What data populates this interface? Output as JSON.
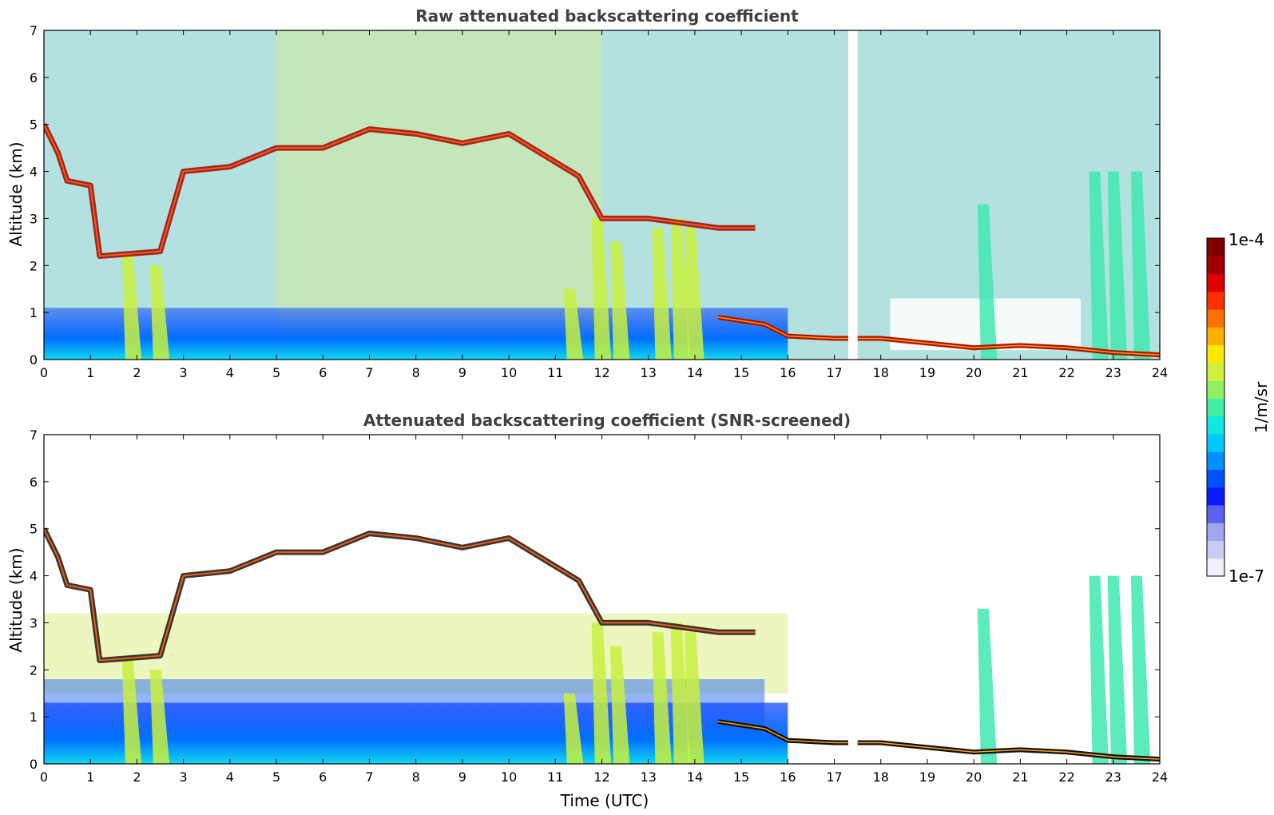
{
  "chart_data": [
    {
      "type": "heatmap",
      "title": "Raw attenuated backscattering coefficient",
      "xlabel": "",
      "ylabel": "Altitude (km)",
      "xlim": [
        0,
        24
      ],
      "ylim": [
        0,
        7
      ],
      "xticks": [
        "0",
        "1",
        "2",
        "3",
        "4",
        "5",
        "6",
        "7",
        "8",
        "9",
        "10",
        "11",
        "12",
        "13",
        "14",
        "15",
        "16",
        "17",
        "18",
        "19",
        "20",
        "21",
        "22",
        "23",
        "24"
      ],
      "yticks": [
        "0",
        "1",
        "2",
        "3",
        "4",
        "5",
        "6",
        "7"
      ],
      "features": {
        "cloud_layer": [
          [
            0,
            5.0
          ],
          [
            0.3,
            4.4
          ],
          [
            0.5,
            3.8
          ],
          [
            1.0,
            3.7
          ],
          [
            1.2,
            2.2
          ],
          [
            2.5,
            2.3
          ],
          [
            3.0,
            4.0
          ],
          [
            4.0,
            4.1
          ],
          [
            5.0,
            4.5
          ],
          [
            6.0,
            4.5
          ],
          [
            7.0,
            4.9
          ],
          [
            8.0,
            4.8
          ],
          [
            9.0,
            4.6
          ],
          [
            10.0,
            4.8
          ],
          [
            10.5,
            4.5
          ],
          [
            11.5,
            3.9
          ],
          [
            12.0,
            3.0
          ],
          [
            13.0,
            3.0
          ],
          [
            14.5,
            2.8
          ],
          [
            15.3,
            2.8
          ]
        ],
        "boundary_layer_top": [
          [
            14.5,
            0.9
          ],
          [
            15.5,
            0.75
          ],
          [
            16.0,
            0.5
          ],
          [
            17.0,
            0.45
          ],
          [
            18.0,
            0.45
          ],
          [
            19.0,
            0.35
          ],
          [
            20.0,
            0.25
          ],
          [
            21.0,
            0.3
          ],
          [
            22.0,
            0.25
          ],
          [
            23.0,
            0.15
          ],
          [
            24.0,
            0.1
          ]
        ],
        "precipitation_streaks": [
          [
            1.8,
            2.2
          ],
          [
            2.4,
            2.0
          ],
          [
            11.3,
            1.5
          ],
          [
            11.9,
            3.0
          ],
          [
            12.3,
            2.5
          ],
          [
            13.2,
            2.8
          ],
          [
            13.6,
            3.0
          ],
          [
            13.9,
            2.8
          ],
          [
            20.2,
            3.3
          ],
          [
            22.6,
            4.0
          ],
          [
            23.0,
            4.0
          ],
          [
            23.5,
            4.0
          ]
        ]
      }
    },
    {
      "type": "heatmap",
      "title": "Attenuated backscattering coefficient (SNR-screened)",
      "xlabel": "Time (UTC)",
      "ylabel": "Altitude (km)",
      "xlim": [
        0,
        24
      ],
      "ylim": [
        0,
        7
      ],
      "xticks": [
        "0",
        "1",
        "2",
        "3",
        "4",
        "5",
        "6",
        "7",
        "8",
        "9",
        "10",
        "11",
        "12",
        "13",
        "14",
        "15",
        "16",
        "17",
        "18",
        "19",
        "20",
        "21",
        "22",
        "23",
        "24"
      ],
      "yticks": [
        "0",
        "1",
        "2",
        "3",
        "4",
        "5",
        "6",
        "7"
      ],
      "features": {
        "cloud_layer": [
          [
            0,
            5.0
          ],
          [
            0.3,
            4.4
          ],
          [
            0.5,
            3.8
          ],
          [
            1.0,
            3.7
          ],
          [
            1.2,
            2.2
          ],
          [
            2.5,
            2.3
          ],
          [
            3.0,
            4.0
          ],
          [
            4.0,
            4.1
          ],
          [
            5.0,
            4.5
          ],
          [
            6.0,
            4.5
          ],
          [
            7.0,
            4.9
          ],
          [
            8.0,
            4.8
          ],
          [
            9.0,
            4.6
          ],
          [
            10.0,
            4.8
          ],
          [
            10.5,
            4.5
          ],
          [
            11.5,
            3.9
          ],
          [
            12.0,
            3.0
          ],
          [
            13.0,
            3.0
          ],
          [
            14.5,
            2.8
          ],
          [
            15.3,
            2.8
          ]
        ],
        "boundary_layer_top": [
          [
            14.5,
            0.9
          ],
          [
            15.5,
            0.75
          ],
          [
            16.0,
            0.5
          ],
          [
            17.0,
            0.45
          ],
          [
            18.0,
            0.45
          ],
          [
            19.0,
            0.35
          ],
          [
            20.0,
            0.25
          ],
          [
            21.0,
            0.3
          ],
          [
            22.0,
            0.25
          ],
          [
            23.0,
            0.15
          ],
          [
            24.0,
            0.1
          ]
        ],
        "precipitation_streaks": [
          [
            1.8,
            2.2
          ],
          [
            2.4,
            2.0
          ],
          [
            11.3,
            1.5
          ],
          [
            11.9,
            3.0
          ],
          [
            12.3,
            2.5
          ],
          [
            13.2,
            2.8
          ],
          [
            13.6,
            3.0
          ],
          [
            13.9,
            2.8
          ],
          [
            20.2,
            3.3
          ],
          [
            22.6,
            4.0
          ],
          [
            23.0,
            4.0
          ],
          [
            23.5,
            4.0
          ]
        ]
      }
    }
  ],
  "colorbar": {
    "label": "1/m/sr",
    "max_label": "1e-4",
    "min_label": "1e-7",
    "colors": [
      "#eef0fb",
      "#c8ccf4",
      "#9ea6ee",
      "#5a62f0",
      "#0a1cff",
      "#0050ff",
      "#0090ff",
      "#00c8ff",
      "#10e8e0",
      "#40f0a0",
      "#90f060",
      "#d0f040",
      "#ffe800",
      "#ffb000",
      "#ff7000",
      "#ff3000",
      "#e00000",
      "#a00000",
      "#800000"
    ]
  }
}
